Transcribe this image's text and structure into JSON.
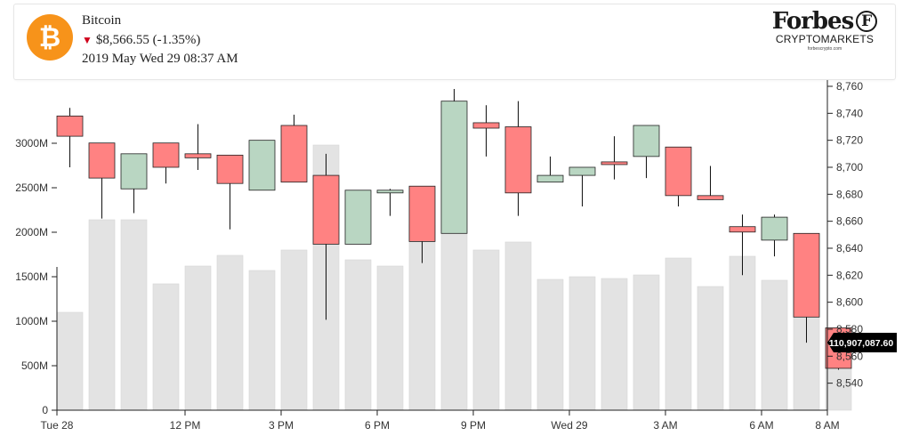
{
  "header": {
    "coin_name": "Bitcoin",
    "coin_icon": "bitcoin-icon",
    "change_indicator": "▼",
    "price": "$8,566.55",
    "change": "(-1.35%)",
    "timestamp": "2019 May Wed 29 08:37 AM",
    "brand_name": "Forbes",
    "brand_mark": "F",
    "brand_sub": "CRYPTOMARKETS",
    "brand_url": "forbescrypto.com"
  },
  "colors": {
    "up": "#b9d6c2",
    "down": "#ff8282",
    "volume": "#e3e3e3",
    "accent": "#f7931a",
    "label_bg": "#000000"
  },
  "chart_data": {
    "type": "candlestick",
    "x_tick_labels": [
      "Tue 28",
      "12 PM",
      "3 PM",
      "6 PM",
      "9 PM",
      "Wed 29",
      "3 AM",
      "6 AM",
      "8 AM"
    ],
    "price_ticks": [
      "8,760",
      "8,740",
      "8,720",
      "8,700",
      "8,680",
      "8,660",
      "8,640",
      "8,620",
      "8,600",
      "8,580",
      "8,560",
      "8,540"
    ],
    "price_ylim": [
      8530,
      8762
    ],
    "volume_ticks": [
      "3000M",
      "2500M",
      "2000M",
      "1500M",
      "1000M",
      "500M",
      "0"
    ],
    "volume_ylim": [
      0,
      3000
    ],
    "volume_unit": "M",
    "current_volume_label": "110,907,087.60",
    "candles": [
      {
        "o": 8738,
        "h": 8744,
        "l": 8700,
        "c": 8723,
        "v": 1100
      },
      {
        "o": 8718,
        "h": 8718,
        "l": 8662,
        "c": 8692,
        "v": 2140
      },
      {
        "o": 8684,
        "h": 8710,
        "l": 8666,
        "c": 8710,
        "v": 2140
      },
      {
        "o": 8718,
        "h": 8718,
        "l": 8688,
        "c": 8700,
        "v": 1420
      },
      {
        "o": 8710,
        "h": 8732,
        "l": 8698,
        "c": 8707,
        "v": 1620
      },
      {
        "o": 8709,
        "h": 8709,
        "l": 8654,
        "c": 8688,
        "v": 1740
      },
      {
        "o": 8683,
        "h": 8720,
        "l": 8683,
        "c": 8720,
        "v": 1570
      },
      {
        "o": 8731,
        "h": 8739,
        "l": 8689,
        "c": 8689,
        "v": 1800
      },
      {
        "o": 8694,
        "h": 8710,
        "l": 8587,
        "c": 8643,
        "v": 2980
      },
      {
        "o": 8643,
        "h": 8683,
        "l": 8643,
        "c": 8683,
        "v": 1690
      },
      {
        "o": 8681,
        "h": 8684,
        "l": 8664,
        "c": 8683,
        "v": 1620
      },
      {
        "o": 8686,
        "h": 8686,
        "l": 8629,
        "c": 8645,
        "v": 2080
      },
      {
        "o": 8651,
        "h": 8758,
        "l": 8651,
        "c": 8749,
        "v": 2580
      },
      {
        "o": 8733,
        "h": 8746,
        "l": 8708,
        "c": 8729,
        "v": 1800
      },
      {
        "o": 8730,
        "h": 8749,
        "l": 8664,
        "c": 8681,
        "v": 1890
      },
      {
        "o": 8689,
        "h": 8708,
        "l": 8689,
        "c": 8694,
        "v": 1470
      },
      {
        "o": 8694,
        "h": 8700,
        "l": 8671,
        "c": 8700,
        "v": 1500
      },
      {
        "o": 8704,
        "h": 8723,
        "l": 8691,
        "c": 8702,
        "v": 1480
      },
      {
        "o": 8708,
        "h": 8731,
        "l": 8692,
        "c": 8731,
        "v": 1520
      },
      {
        "o": 8715,
        "h": 8715,
        "l": 8671,
        "c": 8679,
        "v": 1710
      },
      {
        "o": 8679,
        "h": 8701,
        "l": 8676,
        "c": 8676,
        "v": 1390
      },
      {
        "o": 8656,
        "h": 8665,
        "l": 8620,
        "c": 8652,
        "v": 1730
      },
      {
        "o": 8646,
        "h": 8665,
        "l": 8634,
        "c": 8663,
        "v": 1460
      },
      {
        "o": 8651,
        "h": 8651,
        "l": 8570,
        "c": 8589,
        "v": 1940
      },
      {
        "o": 8581,
        "h": 8581,
        "l": 8550,
        "c": 8551,
        "v": 800
      }
    ]
  }
}
